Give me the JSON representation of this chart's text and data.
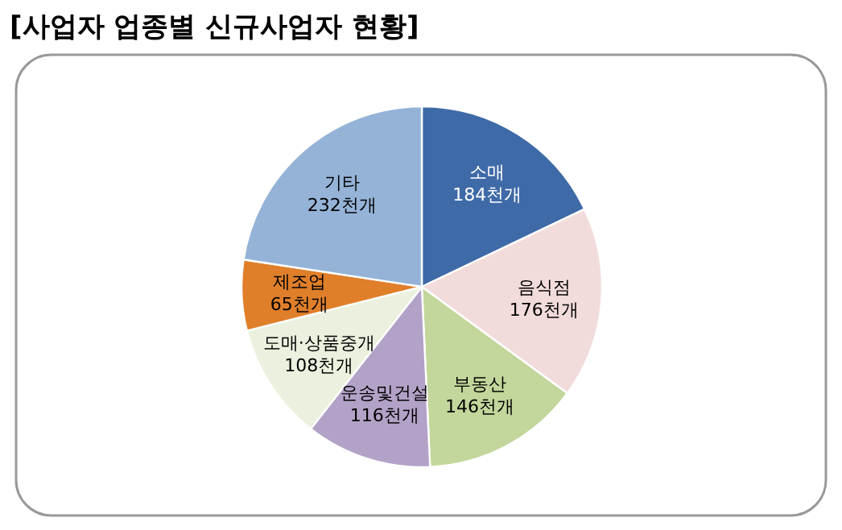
{
  "chart_data": {
    "type": "pie",
    "title": "[사업자 업종별 신규사업자 현황]",
    "categories": [
      "소매",
      "음식점",
      "부동산",
      "운송및건설",
      "도매·상품중개",
      "제조업",
      "기타"
    ],
    "values": [
      184,
      176,
      146,
      116,
      108,
      65,
      232
    ],
    "value_labels": [
      "184천개",
      "176천개",
      "146천개",
      "116천개",
      "108천개",
      "65천개",
      "232천개"
    ],
    "colors": [
      "#3f6aa8",
      "#f2dcdb",
      "#c3d69b",
      "#b3a2c7",
      "#ebf1de",
      "#e07f2a",
      "#95b3d7"
    ]
  }
}
